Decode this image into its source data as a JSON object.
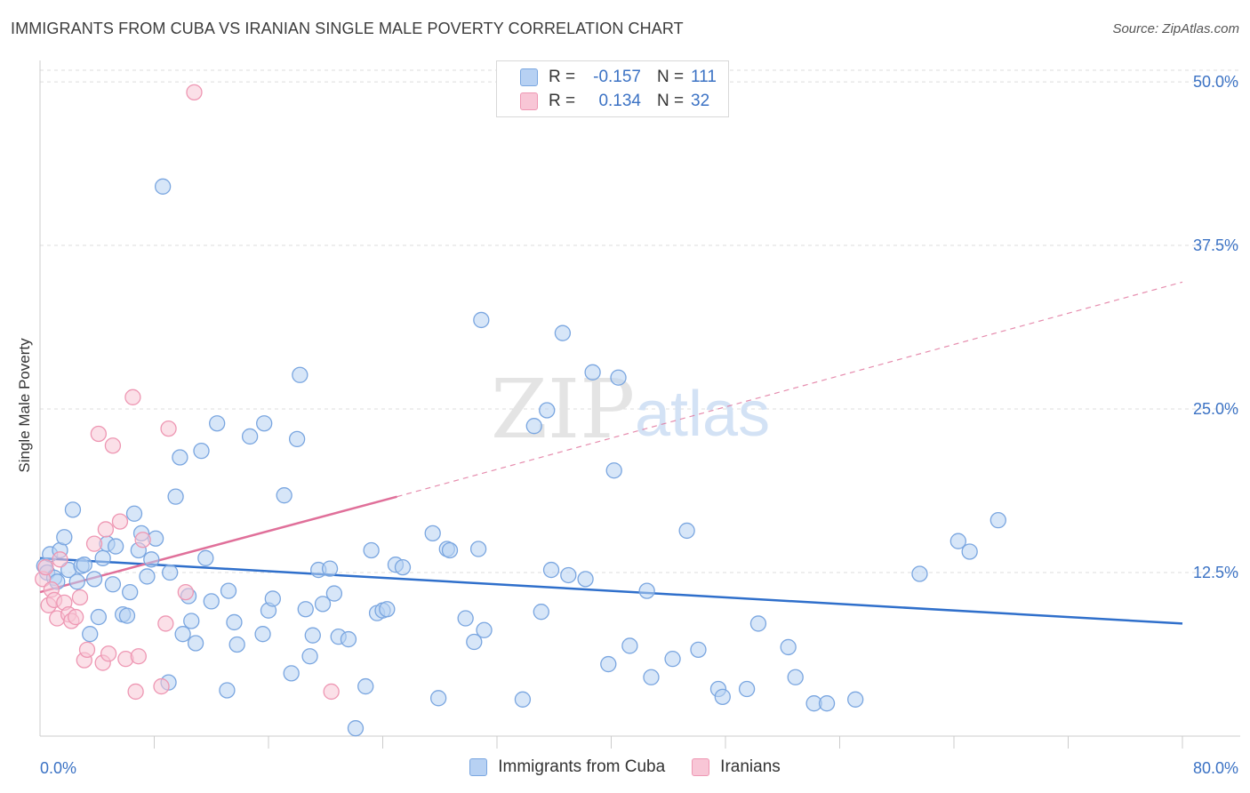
{
  "title": "IMMIGRANTS FROM CUBA VS IRANIAN SINGLE MALE POVERTY CORRELATION CHART",
  "source": "Source: ZipAtlas.com",
  "watermark": {
    "zip": "ZIP",
    "atlas": "atlas"
  },
  "legend": {
    "rows": [
      {
        "r_label": "R =",
        "r_value": "-0.157",
        "n_label": "N =",
        "n_value": "111"
      },
      {
        "r_label": "R =",
        "r_value": "0.134",
        "n_label": "N =",
        "n_value": "32"
      }
    ]
  },
  "colors": {
    "blue_fill": "#b7d1f3",
    "blue_stroke": "#7aa6e0",
    "blue_line": "#2f6fcb",
    "pink_fill": "#f8c6d6",
    "pink_stroke": "#ee97b3",
    "pink_line": "#e0709a",
    "tick_label": "#3b72c4",
    "grid": "#dddddd"
  },
  "chart_data": {
    "type": "scatter",
    "xlabel": "",
    "ylabel": "Single Male Poverty",
    "xlim": [
      0,
      80
    ],
    "ylim": [
      0,
      51.5
    ],
    "x_tick_labels": [
      {
        "value": 0,
        "label": "0.0%"
      },
      {
        "value": 80,
        "label": "80.0%"
      }
    ],
    "y_tick_labels": [
      {
        "value": 12.5,
        "label": "12.5%"
      },
      {
        "value": 25,
        "label": "25.0%"
      },
      {
        "value": 37.5,
        "label": "37.5%"
      },
      {
        "value": 50,
        "label": "50.0%"
      }
    ],
    "x_minor_ticks": [
      8,
      16,
      24,
      32,
      40,
      48,
      56,
      64,
      72,
      80
    ],
    "grid": true,
    "legend_position": "top-center",
    "series": [
      {
        "name": "Immigrants from Cuba",
        "color": "blue",
        "trend": {
          "x": [
            0,
            80
          ],
          "y": [
            13.6,
            8.6
          ],
          "dashed_to": null
        },
        "points": [
          [
            0.3,
            13.0
          ],
          [
            0.5,
            12.5
          ],
          [
            0.7,
            13.9
          ],
          [
            1.0,
            12.1
          ],
          [
            1.2,
            11.8
          ],
          [
            1.4,
            14.2
          ],
          [
            1.7,
            15.2
          ],
          [
            2.0,
            12.7
          ],
          [
            2.3,
            17.3
          ],
          [
            2.6,
            11.8
          ],
          [
            2.9,
            13.0
          ],
          [
            3.1,
            13.1
          ],
          [
            3.5,
            7.8
          ],
          [
            3.8,
            12.0
          ],
          [
            4.1,
            9.1
          ],
          [
            4.4,
            13.6
          ],
          [
            4.7,
            14.7
          ],
          [
            5.1,
            11.6
          ],
          [
            5.3,
            14.5
          ],
          [
            5.8,
            9.3
          ],
          [
            6.1,
            9.2
          ],
          [
            6.3,
            11.0
          ],
          [
            6.6,
            17.0
          ],
          [
            6.9,
            14.2
          ],
          [
            7.1,
            15.5
          ],
          [
            7.5,
            12.2
          ],
          [
            7.8,
            13.5
          ],
          [
            8.1,
            15.1
          ],
          [
            8.6,
            42.0
          ],
          [
            9.0,
            4.1
          ],
          [
            9.1,
            12.5
          ],
          [
            9.5,
            18.3
          ],
          [
            9.8,
            21.3
          ],
          [
            10.0,
            7.8
          ],
          [
            10.4,
            10.7
          ],
          [
            10.6,
            8.8
          ],
          [
            10.9,
            7.1
          ],
          [
            11.3,
            21.8
          ],
          [
            11.6,
            13.6
          ],
          [
            12.0,
            10.3
          ],
          [
            12.4,
            23.9
          ],
          [
            13.1,
            3.5
          ],
          [
            13.2,
            11.1
          ],
          [
            13.6,
            8.7
          ],
          [
            13.8,
            7.0
          ],
          [
            14.7,
            22.9
          ],
          [
            15.6,
            7.8
          ],
          [
            15.7,
            23.9
          ],
          [
            16.0,
            9.6
          ],
          [
            16.3,
            10.5
          ],
          [
            17.1,
            18.4
          ],
          [
            17.6,
            4.8
          ],
          [
            18.0,
            22.7
          ],
          [
            18.2,
            27.6
          ],
          [
            18.6,
            9.7
          ],
          [
            18.9,
            6.1
          ],
          [
            19.1,
            7.7
          ],
          [
            19.5,
            12.7
          ],
          [
            19.8,
            10.1
          ],
          [
            20.3,
            12.8
          ],
          [
            20.6,
            10.9
          ],
          [
            20.9,
            7.6
          ],
          [
            21.6,
            7.4
          ],
          [
            22.1,
            0.6
          ],
          [
            22.8,
            3.8
          ],
          [
            23.2,
            14.2
          ],
          [
            23.6,
            9.4
          ],
          [
            24.0,
            9.6
          ],
          [
            24.3,
            9.7
          ],
          [
            24.9,
            13.1
          ],
          [
            25.4,
            12.9
          ],
          [
            27.5,
            15.5
          ],
          [
            27.9,
            2.9
          ],
          [
            28.5,
            14.3
          ],
          [
            28.7,
            14.2
          ],
          [
            29.8,
            9.0
          ],
          [
            30.4,
            7.2
          ],
          [
            30.7,
            14.3
          ],
          [
            31.1,
            8.1
          ],
          [
            30.9,
            31.8
          ],
          [
            33.8,
            2.8
          ],
          [
            34.6,
            23.7
          ],
          [
            35.1,
            9.5
          ],
          [
            35.5,
            24.9
          ],
          [
            35.8,
            12.7
          ],
          [
            36.6,
            30.8
          ],
          [
            37.0,
            12.3
          ],
          [
            38.2,
            12.0
          ],
          [
            38.7,
            27.8
          ],
          [
            39.8,
            5.5
          ],
          [
            40.2,
            20.3
          ],
          [
            40.5,
            27.4
          ],
          [
            41.3,
            6.9
          ],
          [
            42.5,
            11.1
          ],
          [
            42.8,
            4.5
          ],
          [
            44.3,
            5.9
          ],
          [
            45.3,
            15.7
          ],
          [
            46.1,
            6.6
          ],
          [
            47.5,
            3.6
          ],
          [
            47.8,
            3.0
          ],
          [
            49.5,
            3.6
          ],
          [
            50.3,
            8.6
          ],
          [
            52.4,
            6.8
          ],
          [
            52.9,
            4.5
          ],
          [
            54.2,
            2.5
          ],
          [
            55.1,
            2.5
          ],
          [
            57.1,
            2.8
          ],
          [
            61.6,
            12.4
          ],
          [
            64.3,
            14.9
          ],
          [
            65.1,
            14.1
          ],
          [
            67.1,
            16.5
          ]
        ]
      },
      {
        "name": "Iranians",
        "color": "pink",
        "trend": {
          "x": [
            0,
            25
          ],
          "y": [
            11.0,
            18.3
          ],
          "dashed_to": {
            "x": 80,
            "y": 34.7
          }
        },
        "points": [
          [
            0.2,
            12.0
          ],
          [
            0.4,
            12.9
          ],
          [
            0.6,
            10.0
          ],
          [
            0.8,
            11.2
          ],
          [
            1.0,
            10.4
          ],
          [
            1.2,
            9.0
          ],
          [
            1.4,
            13.5
          ],
          [
            1.7,
            10.2
          ],
          [
            2.0,
            9.3
          ],
          [
            2.2,
            8.8
          ],
          [
            2.5,
            9.1
          ],
          [
            2.8,
            10.6
          ],
          [
            3.1,
            5.8
          ],
          [
            3.3,
            6.6
          ],
          [
            3.8,
            14.7
          ],
          [
            4.1,
            23.1
          ],
          [
            4.4,
            5.6
          ],
          [
            4.6,
            15.8
          ],
          [
            4.8,
            6.3
          ],
          [
            5.1,
            22.2
          ],
          [
            5.6,
            16.4
          ],
          [
            6.0,
            5.9
          ],
          [
            6.5,
            25.9
          ],
          [
            6.7,
            3.4
          ],
          [
            6.9,
            6.1
          ],
          [
            7.2,
            15.0
          ],
          [
            8.5,
            3.8
          ],
          [
            9.0,
            23.5
          ],
          [
            8.8,
            8.6
          ],
          [
            10.2,
            11.0
          ],
          [
            10.8,
            49.2
          ],
          [
            20.4,
            3.4
          ]
        ]
      }
    ]
  }
}
